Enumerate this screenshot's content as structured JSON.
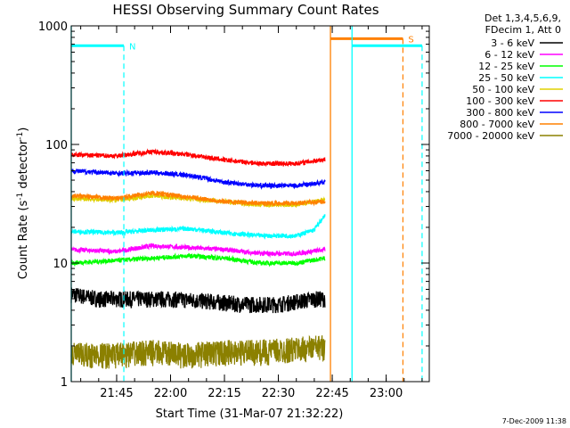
{
  "chart_data": {
    "type": "line",
    "title": "HESSI Observing Summary Count Rates",
    "xlabel": "Start Time (31-Mar-07 21:32:22)",
    "ylabel": "Count Rate (s⁻¹ detector⁻¹)",
    "ylabel_parts": {
      "main": "Count Rate (s",
      "exp1": "-1",
      "mid": " detector",
      "exp2": "-1",
      "end": ")"
    },
    "y_scale": "log",
    "ylim": [
      1,
      1000
    ],
    "xlim": [
      "21:32:22",
      "23:12:00"
    ],
    "x_ticks": [
      "21:45",
      "22:00",
      "22:15",
      "22:30",
      "22:45",
      "23:00"
    ],
    "y_ticks": [
      "1",
      "10",
      "100",
      "1000"
    ],
    "legend": {
      "placement": "right-outside",
      "header": [
        "Det 1,3,4,5,6,9,",
        "FDecim 1, Att 0"
      ],
      "entries": [
        {
          "label": "3 - 6 keV",
          "color": "#000000"
        },
        {
          "label": "6 - 12 keV",
          "color": "#ff00ff"
        },
        {
          "label": "12 - 25 keV",
          "color": "#00ff00"
        },
        {
          "label": "25 - 50 keV",
          "color": "#00ffff"
        },
        {
          "label": "50 - 100 keV",
          "color": "#e0d000"
        },
        {
          "label": "100 - 300 keV",
          "color": "#ff0000"
        },
        {
          "label": "300 - 800 keV",
          "color": "#0000ff"
        },
        {
          "label": "800 - 7000 keV",
          "color": "#ff8000"
        },
        {
          "label": "7000 - 20000 keV",
          "color": "#8b8000"
        }
      ]
    },
    "series": [
      {
        "name": "3 - 6 keV",
        "color": "#000000",
        "x": [
          "21:32",
          "21:40",
          "21:48",
          "22:00",
          "22:10",
          "22:20",
          "22:30",
          "22:40",
          "22:43"
        ],
        "y": [
          5.5,
          5,
          5,
          5,
          4.8,
          4.5,
          4.5,
          5,
          5
        ]
      },
      {
        "name": "6 - 12 keV",
        "color": "#ff00ff",
        "x": [
          "21:32",
          "21:45",
          "21:55",
          "22:05",
          "22:15",
          "22:25",
          "22:35",
          "22:43"
        ],
        "y": [
          13,
          12.5,
          14,
          13.5,
          13,
          12,
          12,
          13
        ]
      },
      {
        "name": "12 - 25 keV",
        "color": "#00ff00",
        "x": [
          "21:32",
          "21:45",
          "21:55",
          "22:05",
          "22:15",
          "22:25",
          "22:35",
          "22:43"
        ],
        "y": [
          10,
          10.5,
          11,
          11.5,
          11,
          10,
          10,
          11
        ]
      },
      {
        "name": "25 - 50 keV",
        "color": "#00ffff",
        "x": [
          "21:32",
          "21:45",
          "21:55",
          "22:05",
          "22:15",
          "22:25",
          "22:35",
          "22:40",
          "22:43"
        ],
        "y": [
          18.5,
          18,
          19,
          19.5,
          18,
          17,
          17,
          19,
          25
        ]
      },
      {
        "name": "50 - 100 keV",
        "color": "#e0d000",
        "x": [
          "21:32",
          "21:45",
          "21:55",
          "22:05",
          "22:15",
          "22:25",
          "22:35",
          "22:43"
        ],
        "y": [
          35,
          34,
          37,
          35,
          33,
          31,
          31,
          34
        ]
      },
      {
        "name": "100 - 300 keV",
        "color": "#ff0000",
        "x": [
          "21:32",
          "21:45",
          "21:55",
          "22:05",
          "22:15",
          "22:25",
          "22:35",
          "22:43"
        ],
        "y": [
          82,
          80,
          87,
          82,
          74,
          69,
          69,
          75
        ]
      },
      {
        "name": "300 - 800 keV",
        "color": "#0000ff",
        "x": [
          "21:32",
          "21:45",
          "21:55",
          "22:05",
          "22:15",
          "22:25",
          "22:35",
          "22:43"
        ],
        "y": [
          60,
          57,
          58,
          55,
          48,
          45,
          45,
          48
        ]
      },
      {
        "name": "800 - 7000 keV",
        "color": "#ff8000",
        "x": [
          "21:32",
          "21:45",
          "21:55",
          "22:05",
          "22:15",
          "22:25",
          "22:35",
          "22:43"
        ],
        "y": [
          37,
          35,
          39,
          36,
          33,
          32,
          32,
          33
        ]
      },
      {
        "name": "7000 - 20000 keV",
        "color": "#8b8000",
        "x": [
          "21:32",
          "21:45",
          "21:55",
          "22:05",
          "22:15",
          "22:25",
          "22:35",
          "22:43"
        ],
        "y": [
          1.7,
          1.7,
          1.8,
          1.7,
          1.8,
          1.8,
          1.9,
          2
        ]
      }
    ],
    "flags": [
      {
        "name": "N",
        "label": "N",
        "color": "#00ffff",
        "level": 680,
        "start": "21:32:22",
        "end": "21:47:00"
      },
      {
        "name": "S",
        "label": "S",
        "color": "#ff8000",
        "level": 780,
        "start": "22:44:30",
        "end": "23:04:40"
      },
      {
        "name": "N2",
        "label": "",
        "color": "#00ffff",
        "level": 680,
        "start": "22:50:30",
        "end": "23:10:00"
      }
    ],
    "timestamp": "7-Dec-2009 11:38"
  }
}
